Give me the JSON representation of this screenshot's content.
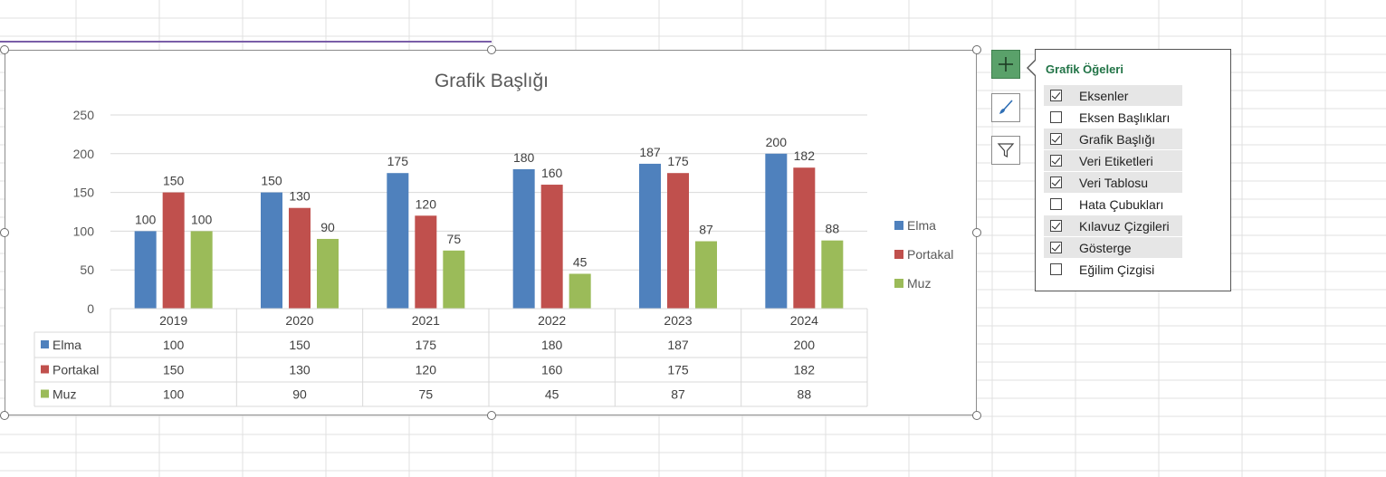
{
  "chart_data": {
    "type": "bar",
    "title": "Grafik Başlığı",
    "categories": [
      "2019",
      "2020",
      "2021",
      "2022",
      "2023",
      "2024"
    ],
    "series": [
      {
        "name": "Elma",
        "color": "#4f81bd",
        "values": [
          100,
          150,
          175,
          180,
          187,
          200
        ]
      },
      {
        "name": "Portakal",
        "color": "#c0504d",
        "values": [
          150,
          130,
          120,
          160,
          175,
          182
        ]
      },
      {
        "name": "Muz",
        "color": "#9bbb59",
        "values": [
          100,
          90,
          75,
          45,
          87,
          88
        ]
      }
    ],
    "ylim": [
      0,
      250
    ],
    "yticks": [
      0,
      50,
      100,
      150,
      200,
      250
    ],
    "grid": true,
    "data_labels": true,
    "data_table": true,
    "legend": "right"
  },
  "chart_elements_panel": {
    "title": "Grafik Öğeleri",
    "items": [
      {
        "label": "Eksenler",
        "checked": true
      },
      {
        "label": "Eksen Başlıkları",
        "checked": false
      },
      {
        "label": "Grafik Başlığı",
        "checked": true
      },
      {
        "label": "Veri Etiketleri",
        "checked": true
      },
      {
        "label": "Veri Tablosu",
        "checked": true
      },
      {
        "label": "Hata Çubukları",
        "checked": false
      },
      {
        "label": "Kılavuz Çizgileri",
        "checked": true
      },
      {
        "label": "Gösterge",
        "checked": true
      },
      {
        "label": "Eğilim Çizgisi",
        "checked": false
      }
    ]
  },
  "side_buttons": [
    {
      "icon": "plus-icon",
      "active": true
    },
    {
      "icon": "brush-icon",
      "active": false
    },
    {
      "icon": "filter-icon",
      "active": false
    }
  ]
}
